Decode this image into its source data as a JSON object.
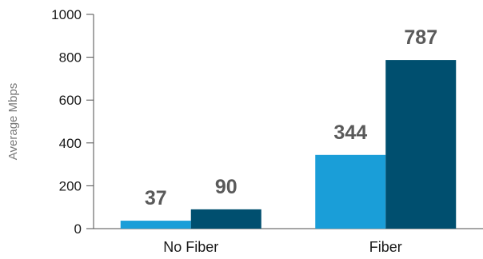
{
  "chart_data": {
    "type": "bar",
    "categories": [
      "No Fiber",
      "Fiber"
    ],
    "series": [
      {
        "values": [
          37,
          344
        ],
        "color": "#1a9ed8"
      },
      {
        "values": [
          90,
          787
        ],
        "color": "#004f6f"
      }
    ],
    "title": "",
    "xlabel": "",
    "ylabel": "Average Mbps",
    "ylim": [
      0,
      1000
    ],
    "yticks": [
      0,
      200,
      400,
      600,
      800,
      1000
    ],
    "data_labels": [
      [
        "37",
        "344"
      ],
      [
        "90",
        "787"
      ]
    ],
    "grid": false,
    "legend": "none"
  }
}
